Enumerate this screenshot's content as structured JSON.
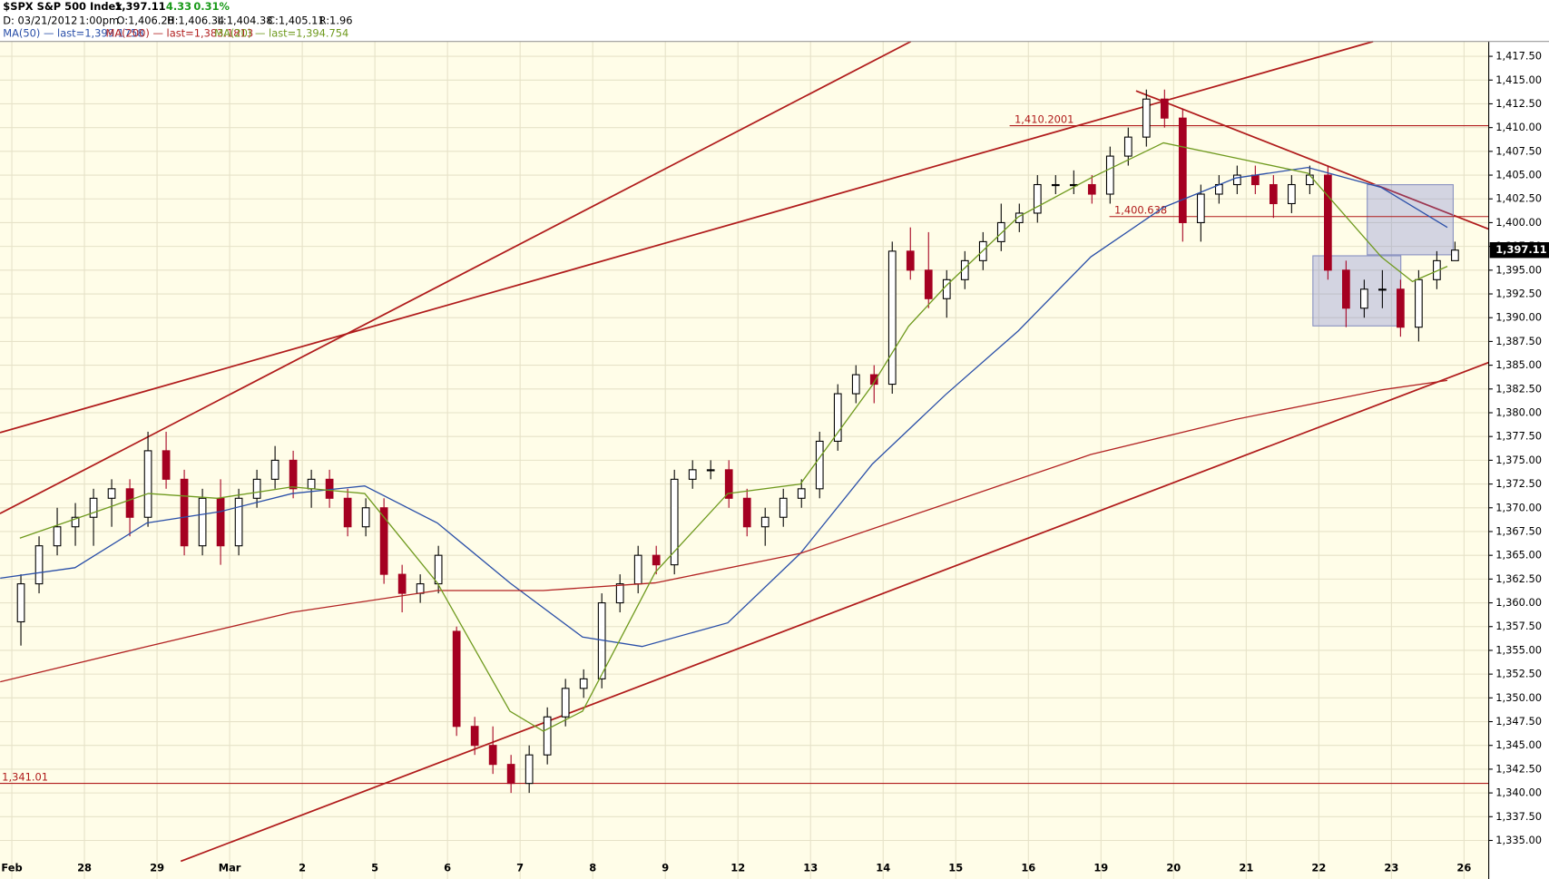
{
  "chart_data": {
    "type": "candlestick",
    "header": {
      "symbol": "$SPX S&P 500 Index",
      "change": "4.33",
      "change_pct": "0.31%",
      "date": "D: 03/21/2012",
      "time": "1:00pm",
      "open": "O:1,406.28",
      "high": "H:1,406.34",
      "low": "L:1,404.38",
      "close": "C:1,405.11",
      "range": "R:1.96"
    },
    "last_price": {
      "value": 1397.11,
      "label": "1,397.11"
    },
    "xlim": [
      -0.163,
      20.34
    ],
    "ylim": [
      1333.23,
      1419.06
    ],
    "grid": true,
    "up_color": "#ffffff",
    "down_color": "#a50021",
    "xticks": [
      {
        "value": 0,
        "label": "Feb"
      },
      {
        "value": 1,
        "label": "28"
      },
      {
        "value": 2,
        "label": "29"
      },
      {
        "value": 3,
        "label": "Mar"
      },
      {
        "value": 4,
        "label": "2"
      },
      {
        "value": 5,
        "label": "5"
      },
      {
        "value": 6,
        "label": "6"
      },
      {
        "value": 7,
        "label": "7"
      },
      {
        "value": 8,
        "label": "8"
      },
      {
        "value": 9,
        "label": "9"
      },
      {
        "value": 10,
        "label": "12"
      },
      {
        "value": 11,
        "label": "13"
      },
      {
        "value": 12,
        "label": "14"
      },
      {
        "value": 13,
        "label": "15"
      },
      {
        "value": 14,
        "label": "16"
      },
      {
        "value": 15,
        "label": "19"
      },
      {
        "value": 16,
        "label": "20"
      },
      {
        "value": 17,
        "label": "21"
      },
      {
        "value": 18,
        "label": "22"
      },
      {
        "value": 19,
        "label": "23"
      },
      {
        "value": 20,
        "label": "26"
      }
    ],
    "yticks": [
      {
        "value": 1335,
        "label": "1,335.00"
      },
      {
        "value": 1337.5,
        "label": "1,337.50"
      },
      {
        "value": 1340,
        "label": "1,340.00"
      },
      {
        "value": 1342.5,
        "label": "1,342.50"
      },
      {
        "value": 1345,
        "label": "1,345.00"
      },
      {
        "value": 1347.5,
        "label": "1,347.50"
      },
      {
        "value": 1350,
        "label": "1,350.00"
      },
      {
        "value": 1352.5,
        "label": "1,352.50"
      },
      {
        "value": 1355,
        "label": "1,355.00"
      },
      {
        "value": 1357.5,
        "label": "1,357.50"
      },
      {
        "value": 1360,
        "label": "1,360.00"
      },
      {
        "value": 1362.5,
        "label": "1,362.50"
      },
      {
        "value": 1365,
        "label": "1,365.00"
      },
      {
        "value": 1367.5,
        "label": "1,367.50"
      },
      {
        "value": 1370,
        "label": "1,370.00"
      },
      {
        "value": 1372.5,
        "label": "1,372.50"
      },
      {
        "value": 1375,
        "label": "1,375.00"
      },
      {
        "value": 1377.5,
        "label": "1,377.50"
      },
      {
        "value": 1380,
        "label": "1,380.00"
      },
      {
        "value": 1382.5,
        "label": "1,382.50"
      },
      {
        "value": 1385,
        "label": "1,385.00"
      },
      {
        "value": 1387.5,
        "label": "1,387.50"
      },
      {
        "value": 1390,
        "label": "1,390.00"
      },
      {
        "value": 1392.5,
        "label": "1,392.50"
      },
      {
        "value": 1395,
        "label": "1,395.00"
      },
      {
        "value": 1397.5,
        "label": "1,397.50"
      },
      {
        "value": 1400,
        "label": "1,400.00"
      },
      {
        "value": 1402.5,
        "label": "1,402.50"
      },
      {
        "value": 1405,
        "label": "1,405.00"
      },
      {
        "value": 1407.5,
        "label": "1,407.50"
      },
      {
        "value": 1410,
        "label": "1,410.00"
      },
      {
        "value": 1412.5,
        "label": "1,412.50"
      },
      {
        "value": 1415,
        "label": "1,415.00"
      },
      {
        "value": 1417.5,
        "label": "1,417.50"
      }
    ],
    "x": [
      0.125,
      0.375,
      0.625,
      0.875,
      1.125,
      1.375,
      1.625,
      1.875,
      2.125,
      2.375,
      2.625,
      2.875,
      3.125,
      3.375,
      3.625,
      3.875,
      4.125,
      4.375,
      4.625,
      4.875,
      5.125,
      5.375,
      5.625,
      5.875,
      6.125,
      6.375,
      6.625,
      6.875,
      7.125,
      7.375,
      7.625,
      7.875,
      8.125,
      8.375,
      8.625,
      8.875,
      9.125,
      9.375,
      9.625,
      9.875,
      10.125,
      10.375,
      10.625,
      10.875,
      11.125,
      11.375,
      11.625,
      11.875,
      12.125,
      12.375,
      12.625,
      12.875,
      13.125,
      13.375,
      13.625,
      13.875,
      14.125,
      14.375,
      14.625,
      14.875,
      15.125,
      15.375,
      15.625,
      15.875,
      16.125,
      16.375,
      16.625,
      16.875,
      17.125,
      17.375,
      17.625,
      17.875,
      18.125,
      18.375,
      18.625,
      18.875,
      19.125,
      19.375,
      19.625,
      19.875
    ],
    "open": [
      1358,
      1362,
      1366,
      1368,
      1369,
      1371,
      1372,
      1369,
      1376,
      1373,
      1366,
      1371,
      1366,
      1371,
      1373,
      1375,
      1372,
      1373,
      1371,
      1368,
      1370,
      1363,
      1361,
      1362,
      1357,
      1347,
      1345,
      1343,
      1341,
      1344,
      1348,
      1351,
      1352,
      1360,
      1362,
      1365,
      1364,
      1373,
      1374,
      1374,
      1371,
      1368,
      1369,
      1371,
      1372,
      1377,
      1382,
      1384,
      1383,
      1397,
      1395,
      1392,
      1394,
      1396,
      1398,
      1400,
      1401,
      1404,
      1404,
      1404,
      1403,
      1407,
      1409,
      1413,
      1411,
      1400,
      1403,
      1404,
      1405,
      1404,
      1402,
      1404,
      1405,
      1395,
      1391,
      1393,
      1393,
      1389,
      1394,
      1396
    ],
    "high": [
      1363,
      1367,
      1370,
      1370.5,
      1372,
      1373,
      1373,
      1378,
      1378,
      1374,
      1372,
      1373,
      1372,
      1374,
      1376.5,
      1376,
      1374,
      1374,
      1372,
      1371,
      1371,
      1364,
      1363,
      1366,
      1357.5,
      1348,
      1347,
      1344,
      1345,
      1349,
      1352,
      1353,
      1361,
      1363,
      1366,
      1366,
      1374,
      1375,
      1375,
      1375,
      1372,
      1370,
      1372,
      1373,
      1378,
      1383,
      1385,
      1385,
      1398,
      1399.5,
      1399,
      1395,
      1397,
      1399,
      1402,
      1402,
      1405,
      1405,
      1405.5,
      1405,
      1408,
      1410,
      1414,
      1414,
      1412,
      1404,
      1405,
      1406,
      1406,
      1405,
      1405,
      1406,
      1406,
      1396,
      1394,
      1395,
      1394,
      1395,
      1397,
      1398
    ],
    "low": [
      1355.5,
      1361,
      1365,
      1366,
      1366,
      1368,
      1367,
      1368,
      1372,
      1365,
      1365,
      1364,
      1365,
      1370,
      1372,
      1371,
      1370,
      1370,
      1367,
      1367,
      1362,
      1359,
      1360,
      1361,
      1346,
      1344,
      1342,
      1340,
      1340,
      1343,
      1347,
      1350,
      1351,
      1359,
      1361,
      1363,
      1363,
      1372,
      1373,
      1370,
      1367,
      1366,
      1368,
      1370,
      1371,
      1376,
      1381,
      1381,
      1382,
      1394,
      1391,
      1390,
      1393,
      1395,
      1397,
      1399,
      1400,
      1403,
      1403,
      1402,
      1402,
      1406,
      1408,
      1410,
      1398,
      1398,
      1402,
      1403,
      1403,
      1400.5,
      1401,
      1403,
      1394,
      1389,
      1390,
      1391,
      1388,
      1387.5,
      1393,
      1396
    ],
    "close": [
      1362,
      1366,
      1368,
      1369,
      1371,
      1372,
      1369,
      1376,
      1373,
      1366,
      1371,
      1366,
      1371,
      1373,
      1375,
      1372,
      1373,
      1371,
      1368,
      1370,
      1363,
      1361,
      1362,
      1365,
      1347,
      1345,
      1343,
      1341,
      1344,
      1348,
      1351,
      1352,
      1360,
      1362,
      1365,
      1364,
      1373,
      1374,
      1374,
      1371,
      1368,
      1369,
      1371,
      1372,
      1377,
      1382,
      1384,
      1383,
      1397,
      1395,
      1392,
      1394,
      1396,
      1398,
      1400,
      1401,
      1404,
      1404,
      1404,
      1403,
      1407,
      1409,
      1413,
      1411,
      1400,
      1403,
      1404,
      1405,
      1404,
      1402,
      1404,
      1405,
      1395,
      1391,
      1393,
      1393,
      1389,
      1394,
      1396,
      1397.11
    ],
    "series": [
      {
        "name": "MA(50) — last=1,399.1758",
        "color": "#2a4fa8",
        "x": [
          -0.16,
          0.87,
          1.86,
          2.87,
          3.86,
          4.86,
          5.86,
          6.86,
          7.86,
          8.68,
          9.86,
          10.86,
          11.85,
          12.86,
          13.86,
          14.86,
          15.86,
          16.86,
          17.85,
          18.86,
          19.77
        ],
        "values": [
          1362.6,
          1363.7,
          1368.4,
          1369.6,
          1371.5,
          1372.3,
          1368.4,
          1362.1,
          1356.4,
          1355.4,
          1357.9,
          1365.2,
          1374.6,
          1381.9,
          1388.6,
          1396.4,
          1401.6,
          1404.7,
          1405.8,
          1403.7,
          1399.5
        ]
      },
      {
        "name": "MA(200) — last=1,383.1813",
        "color": "#b22222",
        "x": [
          -0.16,
          1.86,
          3.86,
          5.86,
          7.32,
          8.86,
          10.86,
          12.86,
          14.86,
          16.86,
          18.86,
          19.77
        ],
        "values": [
          1351.7,
          1355.4,
          1359,
          1361.3,
          1361.3,
          1362.1,
          1365.2,
          1370.4,
          1375.6,
          1379.3,
          1382.4,
          1383.4
        ]
      },
      {
        "name": "MA(20) — last=1,394.754",
        "color": "#6f9a1e",
        "x": [
          0.11,
          1.88,
          2.83,
          3.86,
          4.86,
          5.86,
          6.86,
          7.32,
          7.86,
          8.86,
          9.86,
          10.86,
          11.85,
          12.35,
          12.86,
          13.86,
          14.86,
          15.86,
          16.86,
          17.85,
          18.86,
          19.29,
          19.77
        ],
        "values": [
          1366.8,
          1371.5,
          1371,
          1372.2,
          1371.5,
          1362.1,
          1348.6,
          1346.5,
          1348.6,
          1363.2,
          1371.5,
          1372.5,
          1382.9,
          1389.1,
          1393.3,
          1400.6,
          1404.7,
          1408.4,
          1406.8,
          1405.2,
          1396.4,
          1393.8,
          1395.4
        ]
      }
    ],
    "annotations": [
      {
        "value": 1410.2001,
        "label": "1,410.2001"
      },
      {
        "value": 1400.6382,
        "label": "1,400.638"
      },
      {
        "value": 1341.01,
        "label": "1,341.01"
      }
    ]
  }
}
